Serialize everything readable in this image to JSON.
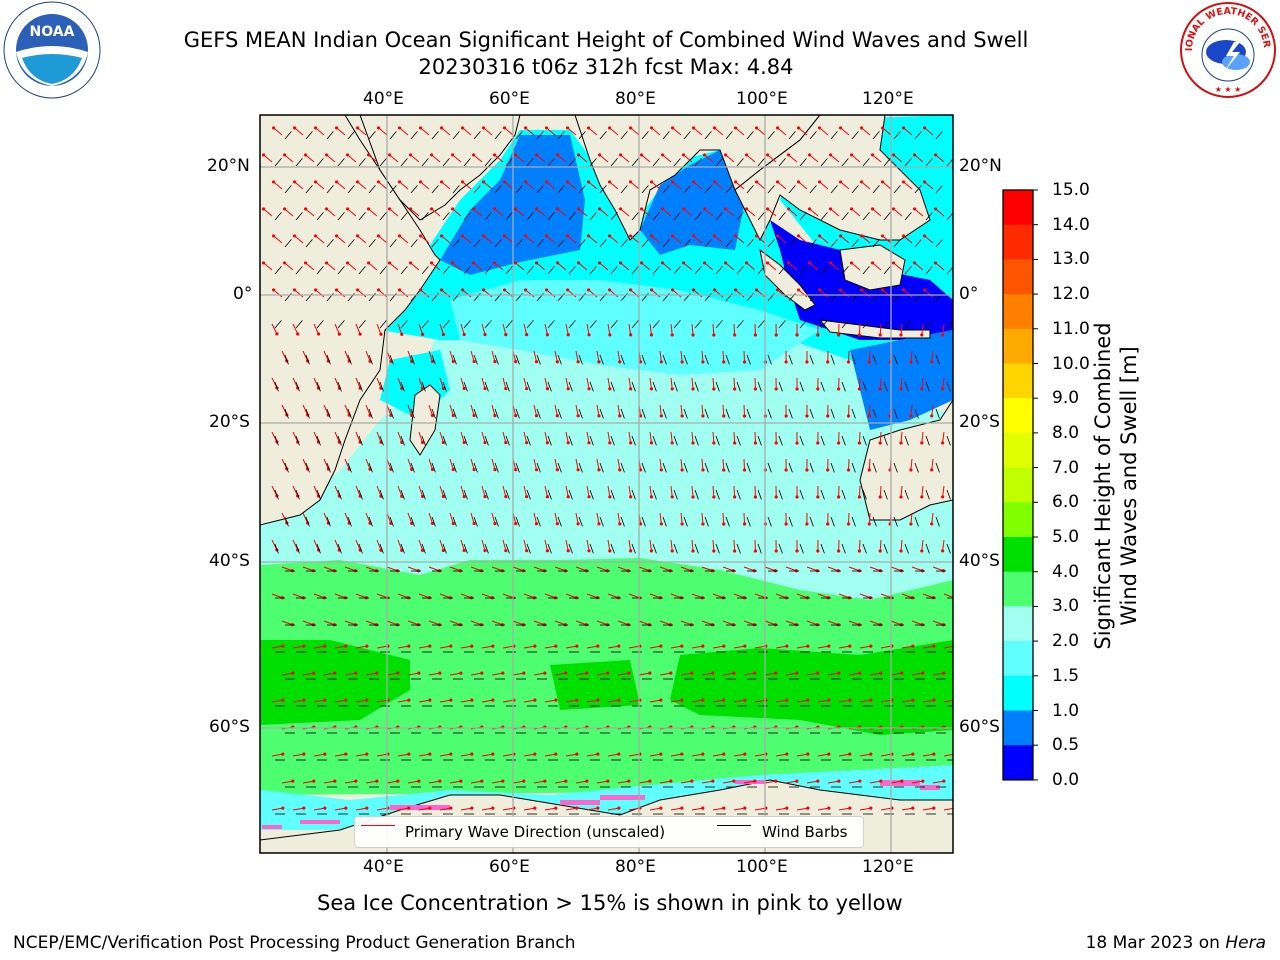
{
  "header": {
    "title_line1": "GEFS MEAN Indian Ocean Significant Height of Combined Wind Waves and Swell",
    "title_line2": "20230316 t06z 312h fcst   Max: 4.84"
  },
  "logos": {
    "noaa_text": "NOAA",
    "nws_text": "NATIONAL WEATHER SERVICE"
  },
  "axes": {
    "lon_ticks": [
      "40°E",
      "60°E",
      "80°E",
      "100°E",
      "120°E"
    ],
    "lat_ticks": [
      "20°N",
      "0°",
      "20°S",
      "40°S",
      "60°S"
    ]
  },
  "legend": {
    "wave_label": "Primary Wave Direction (unscaled)",
    "barb_label": "Wind Barbs",
    "wave_color": "#ff0000",
    "barb_color": "#000000"
  },
  "colorbar": {
    "title_line1": "Significant Height of Combined",
    "title_line2": "Wind Waves and Swell [m]",
    "labels": [
      "15.0",
      "14.0",
      "13.0",
      "12.0",
      "11.0",
      "10.0",
      "9.0",
      "8.0",
      "7.0",
      "6.0",
      "5.0",
      "4.0",
      "3.0",
      "2.0",
      "1.5",
      "1.0",
      "0.5",
      "0.0"
    ],
    "colors": [
      "#ff0000",
      "#ff2a00",
      "#ff5500",
      "#ff8000",
      "#ffaa00",
      "#ffd400",
      "#ffff00",
      "#e0ff00",
      "#c0ff00",
      "#80ff00",
      "#00e000",
      "#4dff70",
      "#a0fff0",
      "#60ffff",
      "#00ffff",
      "#0080ff",
      "#0000ff"
    ]
  },
  "map_colors": {
    "land": "#efeedd",
    "ice": "#ff66cc"
  },
  "footer": {
    "ice_note": "Sea Ice Concentration > 15% is shown in pink to yellow",
    "credit": "NCEP/EMC/Verification Post Processing Product Generation Branch",
    "date": "18 Mar 2023 on",
    "host": "Hera"
  }
}
